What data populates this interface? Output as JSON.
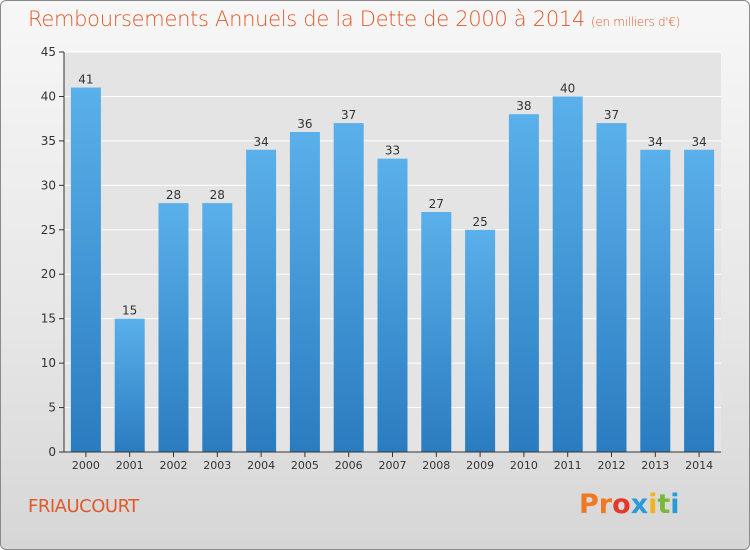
{
  "header": {
    "title": "Remboursements Annuels de la Dette de 2000 à 2014",
    "unit": "(en milliers d'€)"
  },
  "footer": {
    "town": "FRIAUCOURT",
    "logo": "Proxiti",
    "logo_colors": [
      "#f07820",
      "#f07820",
      "#e03a2a",
      "#2a9ad8",
      "#f0b41e",
      "#7ab83a",
      "#2a9ad8"
    ]
  },
  "colors": {
    "bar_top": "#5ab0ea",
    "bar_bottom": "#2a7cc0",
    "title": "#e05a2a",
    "grid": "#ffffff"
  },
  "chart_data": {
    "type": "bar",
    "title": "Remboursements Annuels de la Dette de 2000 à 2014",
    "xlabel": "",
    "ylabel": "",
    "categories": [
      "2000",
      "2001",
      "2002",
      "2003",
      "2004",
      "2005",
      "2006",
      "2007",
      "2008",
      "2009",
      "2010",
      "2011",
      "2012",
      "2013",
      "2014"
    ],
    "values": [
      41,
      15,
      28,
      28,
      34,
      36,
      37,
      33,
      27,
      25,
      38,
      40,
      37,
      34,
      34
    ],
    "ylim": [
      0,
      45
    ],
    "yticks": [
      0,
      5,
      10,
      15,
      20,
      25,
      30,
      35,
      40,
      45
    ],
    "grid": true,
    "data_labels": true
  }
}
